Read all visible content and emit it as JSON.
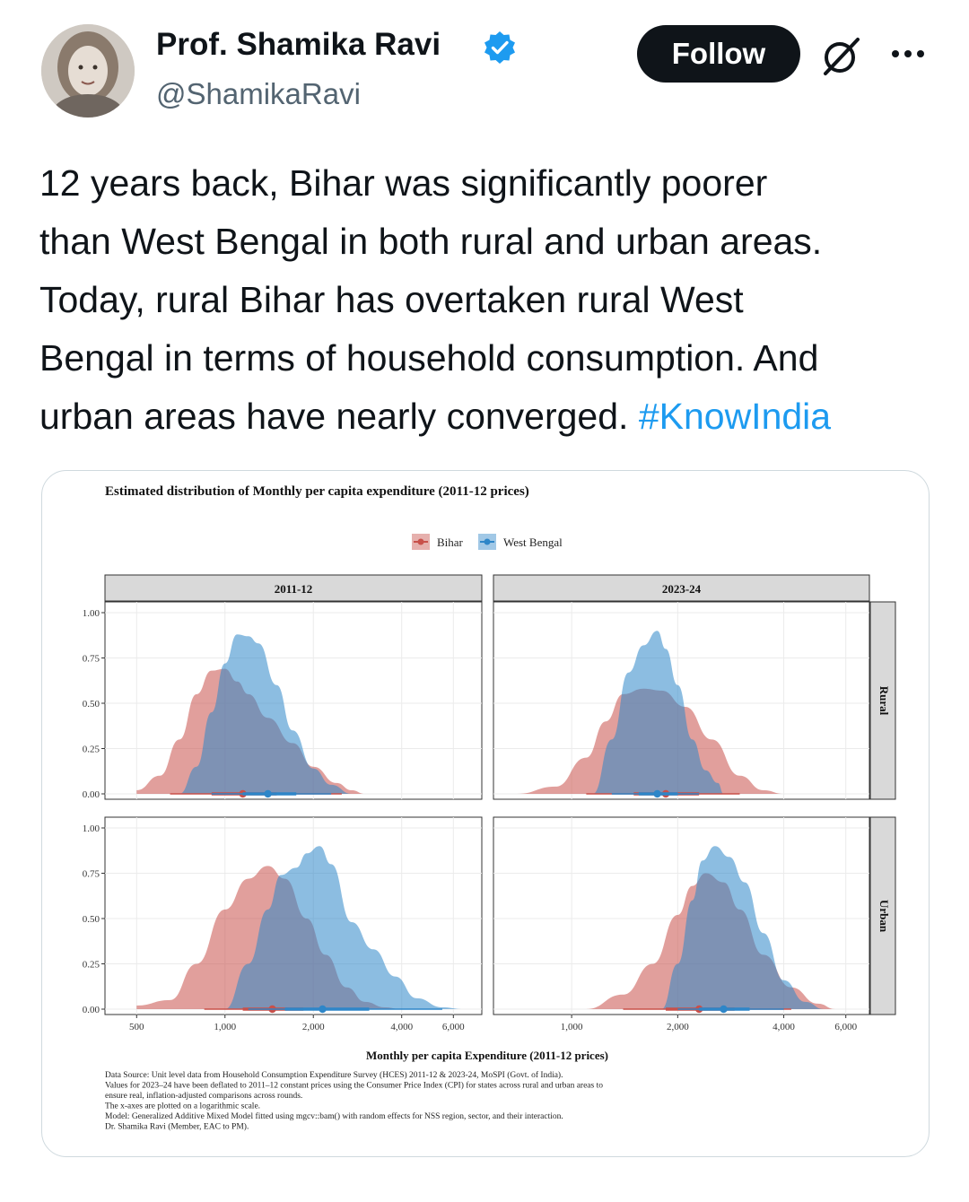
{
  "author": {
    "display_name": "Prof. Shamika Ravi",
    "handle": "@ShamikaRavi",
    "verified": true,
    "verified_color": "#1d9bf0"
  },
  "actions": {
    "follow_label": "Follow",
    "grok_icon": "grok-icon",
    "more_icon": "more-icon"
  },
  "tweet": {
    "lines": [
      "12 years back, Bihar was significantly poorer",
      "than West Bengal in both rural and urban areas.",
      "Today, rural Bihar has overtaken rural West",
      "Bengal in terms of household consumption. And",
      "urban areas have nearly converged. "
    ],
    "hashtag": "#KnowIndia",
    "hashtag_color": "#1d9bf0"
  },
  "chart_data": {
    "type": "area",
    "title": "Estimated distribution of Monthly per capita expenditure (2011-12 prices)",
    "xlabel": "Monthly per capita Expenditure (2011-12 prices)",
    "ylabel": "",
    "x_scale": "log",
    "legend": {
      "placement": "top",
      "entries": [
        "Bihar",
        "West Bengal"
      ]
    },
    "colors": {
      "Bihar": "#c8504a",
      "West Bengal": "#2e86c8"
    },
    "ylim": [
      0,
      1.0
    ],
    "y_ticks": [
      "0.00",
      "0.25",
      "0.50",
      "0.75",
      "1.00"
    ],
    "columns": [
      "2011-12",
      "2023-24"
    ],
    "rows": [
      "Rural",
      "Urban"
    ],
    "x_ticks": {
      "2011-12": [
        {
          "label": "500",
          "value": 500
        },
        {
          "label": "1,000",
          "value": 1000
        },
        {
          "label": "2,000",
          "value": 2000
        },
        {
          "label": "4,000",
          "value": 4000
        },
        {
          "label": "6,000",
          "value": 6000
        }
      ],
      "2023-24": [
        {
          "label": "1,000",
          "value": 1000
        },
        {
          "label": "2,000",
          "value": 2000
        },
        {
          "label": "4,000",
          "value": 4000
        },
        {
          "label": "6,000",
          "value": 6000
        }
      ]
    },
    "panels": [
      {
        "column": "2011-12",
        "row": "Rural",
        "xlim": [
          390,
          7500
        ],
        "series": [
          {
            "name": "Bihar",
            "x": [
              500,
              600,
              700,
              800,
              900,
              1000,
              1100,
              1200,
              1400,
              1700,
              2000,
              2400,
              2700,
              3000
            ],
            "y": [
              0.02,
              0.1,
              0.3,
              0.55,
              0.68,
              0.69,
              0.62,
              0.55,
              0.42,
              0.28,
              0.15,
              0.06,
              0.02,
              0.0
            ],
            "point": 1150,
            "interval": [
              650,
              2500
            ],
            "interval_inner": [
              900,
              1500
            ]
          },
          {
            "name": "West Bengal",
            "x": [
              700,
              800,
              900,
              1000,
              1100,
              1200,
              1300,
              1500,
              1700,
              2000,
              2300,
              2700
            ],
            "y": [
              0.0,
              0.15,
              0.45,
              0.72,
              0.88,
              0.87,
              0.83,
              0.6,
              0.35,
              0.14,
              0.05,
              0.0
            ],
            "point": 1400,
            "interval": [
              900,
              2300
            ],
            "interval_inner": [
              1150,
              1750
            ]
          }
        ]
      },
      {
        "column": "2023-24",
        "row": "Rural",
        "xlim": [
          600,
          7000
        ],
        "series": [
          {
            "name": "Bihar",
            "x": [
              700,
              900,
              1100,
              1250,
              1400,
              1600,
              1800,
              2100,
              2500,
              3000,
              3500,
              4000
            ],
            "y": [
              0.0,
              0.04,
              0.2,
              0.4,
              0.55,
              0.58,
              0.57,
              0.48,
              0.3,
              0.1,
              0.02,
              0.0
            ],
            "point": 1850,
            "interval": [
              1100,
              3000
            ],
            "interval_inner": [
              1500,
              2300
            ]
          },
          {
            "name": "West Bengal",
            "x": [
              1150,
              1300,
              1450,
              1600,
              1750,
              1850,
              2000,
              2200,
              2400,
              2600,
              2700
            ],
            "y": [
              0.0,
              0.3,
              0.67,
              0.82,
              0.9,
              0.8,
              0.6,
              0.3,
              0.13,
              0.06,
              0.0
            ],
            "point": 1750,
            "interval": [
              1300,
              2300
            ],
            "interval_inner": [
              1550,
              2000
            ]
          }
        ]
      },
      {
        "column": "2011-12",
        "row": "Urban",
        "xlim": [
          390,
          7500
        ],
        "series": [
          {
            "name": "Bihar",
            "x": [
              500,
              650,
              800,
              1000,
              1200,
              1400,
              1600,
              1900,
              2200,
              2600,
              3000,
              3500,
              4000
            ],
            "y": [
              0.02,
              0.05,
              0.25,
              0.55,
              0.72,
              0.79,
              0.72,
              0.5,
              0.3,
              0.12,
              0.04,
              0.01,
              0.0
            ],
            "point": 1450,
            "interval": [
              850,
              3000
            ],
            "interval_inner": [
              1150,
              1850
            ]
          },
          {
            "name": "West Bengal",
            "x": [
              1000,
              1200,
              1400,
              1550,
              1750,
              1900,
              2100,
              2300,
              2700,
              3200,
              3800,
              4500,
              5500,
              6500
            ],
            "y": [
              0.0,
              0.25,
              0.55,
              0.74,
              0.78,
              0.86,
              0.9,
              0.8,
              0.48,
              0.33,
              0.18,
              0.06,
              0.01,
              0.0
            ],
            "point": 2150,
            "interval": [
              1200,
              5500
            ],
            "interval_inner": [
              1600,
              3100
            ]
          }
        ]
      },
      {
        "column": "2023-24",
        "row": "Urban",
        "xlim": [
          600,
          7000
        ],
        "series": [
          {
            "name": "Bihar",
            "x": [
              1100,
              1400,
              1700,
              2000,
              2200,
              2400,
              2700,
              3000,
              3500,
              4200,
              5000,
              5600
            ],
            "y": [
              0.0,
              0.08,
              0.25,
              0.52,
              0.68,
              0.75,
              0.7,
              0.55,
              0.3,
              0.12,
              0.03,
              0.0
            ],
            "point": 2300,
            "interval": [
              1400,
              4200
            ],
            "interval_inner": [
              1850,
              2900
            ]
          },
          {
            "name": "West Bengal",
            "x": [
              1800,
              2000,
              2200,
              2350,
              2550,
              2800,
              3100,
              3500,
              4000,
              4600,
              5200
            ],
            "y": [
              0.0,
              0.25,
              0.6,
              0.82,
              0.9,
              0.84,
              0.7,
              0.42,
              0.16,
              0.04,
              0.0
            ],
            "point": 2700,
            "interval": [
              2000,
              4000
            ],
            "interval_inner": [
              2300,
              3200
            ]
          }
        ]
      }
    ],
    "notes": [
      "Data Source: Unit level data from Household Consumption Expenditure Survey (HCES) 2011-12 & 2023-24, MoSPI (Govt. of India).",
      "Values for 2023–24 have been deflated to 2011–12 constant prices using the Consumer Price Index (CPI) for states across rural and urban areas to",
      "ensure real, inflation-adjusted comparisons across rounds.",
      "The x-axes are plotted on a logarithmic scale.",
      "Model: Generalized Additive Mixed Model fitted using mgcv::bam() with random effects for NSS region, sector, and their interaction.",
      "Dr. Shamika Ravi (Member, EAC to PM)."
    ]
  }
}
